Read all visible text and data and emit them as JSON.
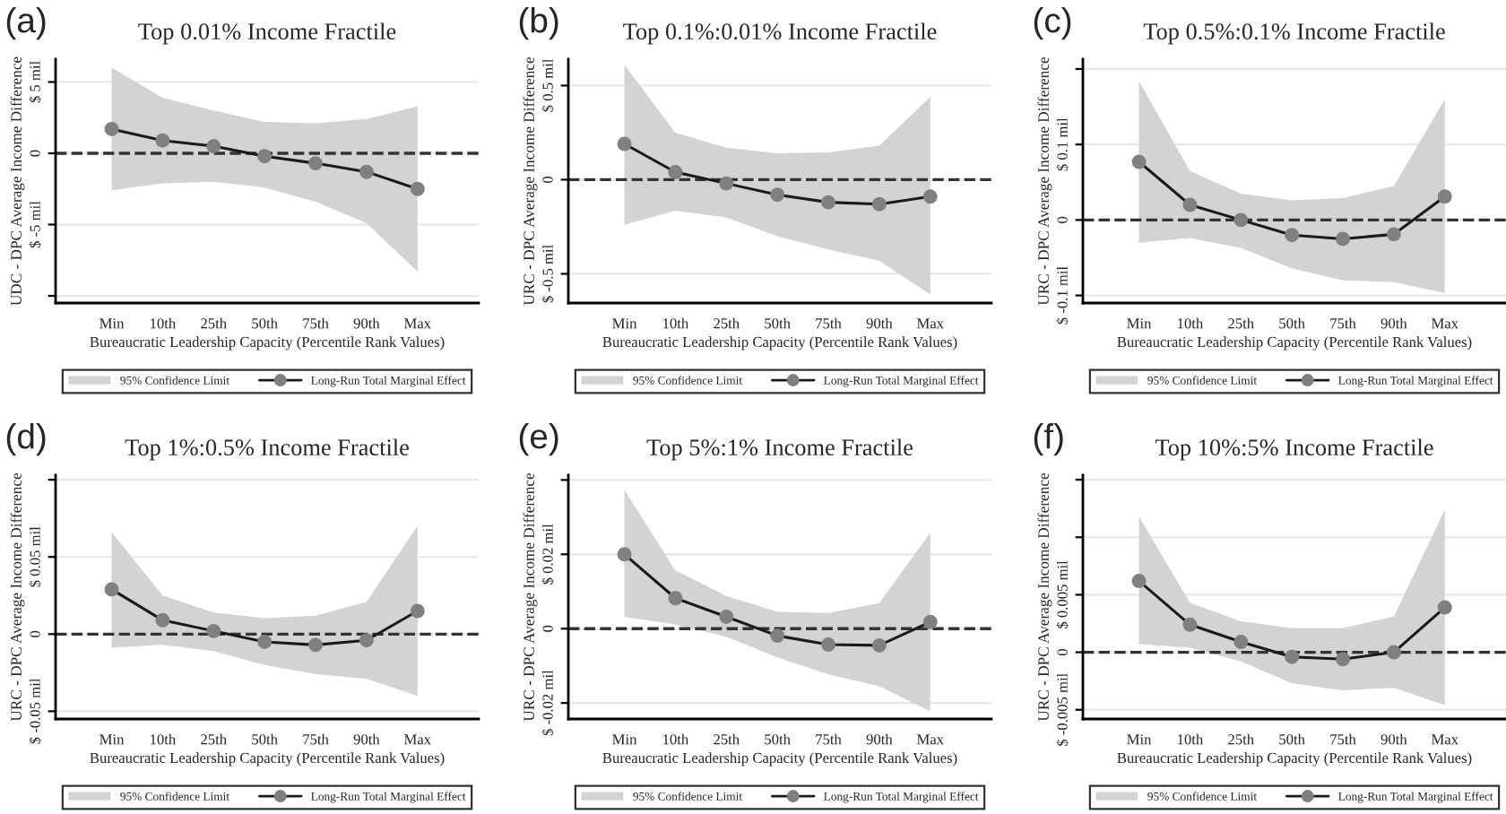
{
  "chart_data": [
    {
      "type": "line",
      "title": "Top 0.01% Income Fractile",
      "xlabel": "Bureaucratic Leadership Capacity (Percentile Rank Values)",
      "ylabel": "UDC - DPC Average Income Difference",
      "annotations": [
        "(a)",
        "95% Confidence Limit"
      ],
      "categories": [
        "Min",
        "10th",
        "25th",
        "50th",
        "75th",
        "90th",
        "Max"
      ],
      "series": [
        {
          "name": "Long-Run Total Marginal Effect",
          "color": "#1a1a1a",
          "values": [
            1.7,
            0.9,
            0.5,
            -0.2,
            -0.7,
            -1.3,
            -2.5
          ],
          "lower": [
            -2.6,
            -2.1,
            -2.0,
            -2.4,
            -3.4,
            -4.9,
            -8.3
          ],
          "upper": [
            6.0,
            3.9,
            3.0,
            2.2,
            2.1,
            2.4,
            3.3
          ]
        }
      ],
      "ylim": [
        -10.5,
        6.6
      ],
      "yticks": [
        {
          "value": 5,
          "label": "$ 5 mil"
        },
        0,
        {
          "value": -5,
          "label": "$ -5 mil"
        },
        {
          "value": -10,
          "label": null
        }
      ],
      "ref_lines": [
        {
          "axis": "y",
          "value": 0,
          "line_style": "dashed",
          "color": "#333333"
        }
      ],
      "grid": "y",
      "legend": "bottom",
      "marker": "circle",
      "line_style": "solid"
    },
    {
      "type": "line",
      "title": "Top 0.1%:0.01% Income Fractile",
      "xlabel": "Bureaucratic Leadership Capacity (Percentile Rank Values)",
      "ylabel": "URC - DPC Average Income Difference",
      "annotations": [
        "(b)",
        "95% Confidence Limit"
      ],
      "categories": [
        "Min",
        "10th",
        "25th",
        "50th",
        "75th",
        "90th",
        "Max"
      ],
      "series": [
        {
          "name": "Long-Run Total Marginal Effect",
          "color": "#1a1a1a",
          "values": [
            0.19,
            0.04,
            -0.02,
            -0.08,
            -0.12,
            -0.13,
            -0.09
          ],
          "lower": [
            -0.24,
            -0.165,
            -0.2,
            -0.3,
            -0.37,
            -0.43,
            -0.61
          ],
          "upper": [
            0.61,
            0.25,
            0.17,
            0.14,
            0.145,
            0.18,
            0.44
          ]
        }
      ],
      "ylim": [
        -0.655,
        0.64
      ],
      "yticks": [
        {
          "value": 0.5,
          "label": "$ 0.5 mil"
        },
        0,
        {
          "value": -0.5,
          "label": "$ -0.5 mil"
        }
      ],
      "ref_lines": [
        {
          "axis": "y",
          "value": 0,
          "line_style": "dashed",
          "color": "#333333"
        }
      ],
      "grid": "y",
      "legend": "bottom",
      "marker": "circle",
      "line_style": "solid"
    },
    {
      "type": "line",
      "title": "Top 0.5%:0.1% Income Fractile",
      "xlabel": "Bureaucratic Leadership Capacity (Percentile Rank Values)",
      "ylabel": "URC - DPC Average Income Difference",
      "annotations": [
        "(c)",
        "95% Confidence Limit"
      ],
      "categories": [
        "Min",
        "10th",
        "25th",
        "50th",
        "75th",
        "90th",
        "Max"
      ],
      "series": [
        {
          "name": "Long-Run Total Marginal Effect",
          "color": "#1a1a1a",
          "values": [
            0.077,
            0.02,
            0,
            -0.02,
            -0.025,
            -0.019,
            0.031
          ],
          "lower": [
            -0.03,
            -0.024,
            -0.037,
            -0.064,
            -0.08,
            -0.082,
            -0.097
          ],
          "upper": [
            0.184,
            0.065,
            0.035,
            0.026,
            0.029,
            0.045,
            0.16
          ]
        }
      ],
      "ylim": [
        -0.11,
        0.213
      ],
      "yticks": [
        {
          "value": 0.2,
          "label": null
        },
        {
          "value": 0.1,
          "label": "$ 0.1 mil"
        },
        0,
        {
          "value": -0.1,
          "label": "$ -0.1 mil"
        }
      ],
      "ref_lines": [
        {
          "axis": "y",
          "value": 0,
          "line_style": "dashed",
          "color": "#333333"
        }
      ],
      "grid": "y",
      "legend": "bottom",
      "marker": "circle",
      "line_style": "solid"
    },
    {
      "type": "line",
      "title": "Top 1%:0.5% Income Fractile",
      "xlabel": "Bureaucratic Leadership Capacity (Percentile Rank Values)",
      "ylabel": "URC - DPC Average Income Difference",
      "annotations": [
        "(d)",
        "95% Confidence Limit"
      ],
      "categories": [
        "Min",
        "10th",
        "25th",
        "50th",
        "75th",
        "90th",
        "Max"
      ],
      "series": [
        {
          "name": "Long-Run Total Marginal Effect",
          "color": "#1a1a1a",
          "values": [
            0.029,
            0.009,
            0.002,
            -0.005,
            -0.007,
            -0.004,
            0.015
          ],
          "lower": [
            -0.0088,
            -0.007,
            -0.011,
            -0.02,
            -0.026,
            -0.029,
            -0.04
          ],
          "upper": [
            0.066,
            0.025,
            0.014,
            0.0104,
            0.012,
            0.021,
            0.07
          ]
        }
      ],
      "ylim": [
        -0.055,
        0.103
      ],
      "yticks": [
        {
          "value": 0.1,
          "label": null
        },
        {
          "value": 0.05,
          "label": "$ 0.05 mil"
        },
        0,
        {
          "value": -0.05,
          "label": "$ -0.05 mil"
        }
      ],
      "ref_lines": [
        {
          "axis": "y",
          "value": 0,
          "line_style": "dashed",
          "color": "#333333"
        }
      ],
      "grid": "y",
      "legend": "bottom",
      "marker": "circle",
      "line_style": "solid"
    },
    {
      "type": "line",
      "title": "Top 5%:1% Income Fractile",
      "xlabel": "Bureaucratic Leadership Capacity (Percentile Rank Values)",
      "ylabel": "URC - DPC Average Income Difference",
      "annotations": [
        "(e)",
        "95% Confidence Limit"
      ],
      "categories": [
        "Min",
        "10th",
        "25th",
        "50th",
        "75th",
        "90th",
        "Max"
      ],
      "series": [
        {
          "name": "Long-Run Total Marginal Effect",
          "color": "#1a1a1a",
          "values": [
            0.02,
            0.0082,
            0.0032,
            -0.0019,
            -0.0043,
            -0.0045,
            0.0018
          ],
          "lower": [
            0.0032,
            0.0011,
            -0.0022,
            -0.0078,
            -0.0123,
            -0.0155,
            -0.0222
          ],
          "upper": [
            0.0373,
            0.0157,
            0.0088,
            0.0045,
            0.0042,
            0.0069,
            0.0258
          ]
        }
      ],
      "ylim": [
        -0.0243,
        0.0413
      ],
      "yticks": [
        {
          "value": 0.04,
          "label": null
        },
        {
          "value": 0.02,
          "label": "$ 0.02 mil"
        },
        0,
        {
          "value": -0.02,
          "label": "$ -0.02 mil"
        }
      ],
      "ref_lines": [
        {
          "axis": "y",
          "value": 0,
          "line_style": "dashed",
          "color": "#333333"
        }
      ],
      "grid": "y",
      "legend": "bottom",
      "marker": "circle",
      "line_style": "solid"
    },
    {
      "type": "line",
      "title": "Top 10%:5% Income Fractile",
      "xlabel": "Bureaucratic Leadership Capacity (Percentile Rank Values)",
      "ylabel": "URC - DPC Average Income Difference",
      "annotations": [
        "(f)",
        "95% Confidence Limit"
      ],
      "categories": [
        "Min",
        "10th",
        "25th",
        "50th",
        "75th",
        "90th",
        "Max"
      ],
      "series": [
        {
          "name": "Long-Run Total Marginal Effect",
          "color": "#1a1a1a",
          "values": [
            0.0062,
            0.0024,
            0.0009,
            -0.0004,
            -0.0006,
            0,
            0.0039
          ],
          "lower": [
            0.0007,
            0.0004,
            -0.0008,
            -0.0027,
            -0.0033,
            -0.0031,
            -0.0046
          ],
          "upper": [
            0.0118,
            0.0043,
            0.0027,
            0.0021,
            0.0021,
            0.0031,
            0.0124
          ]
        }
      ],
      "ylim": [
        -0.0058,
        0.0154
      ],
      "yticks": [
        {
          "value": 0.015,
          "label": null
        },
        {
          "value": 0.01,
          "label": null
        },
        {
          "value": 0.005,
          "label": "$ 0.005 mil"
        },
        0,
        {
          "value": -0.005,
          "label": "$ -0.005 mil"
        }
      ],
      "ref_lines": [
        {
          "axis": "y",
          "value": 0,
          "line_style": "dashed",
          "color": "#333333"
        }
      ],
      "grid": "y",
      "legend": "bottom",
      "marker": "circle",
      "line_style": "solid"
    }
  ]
}
